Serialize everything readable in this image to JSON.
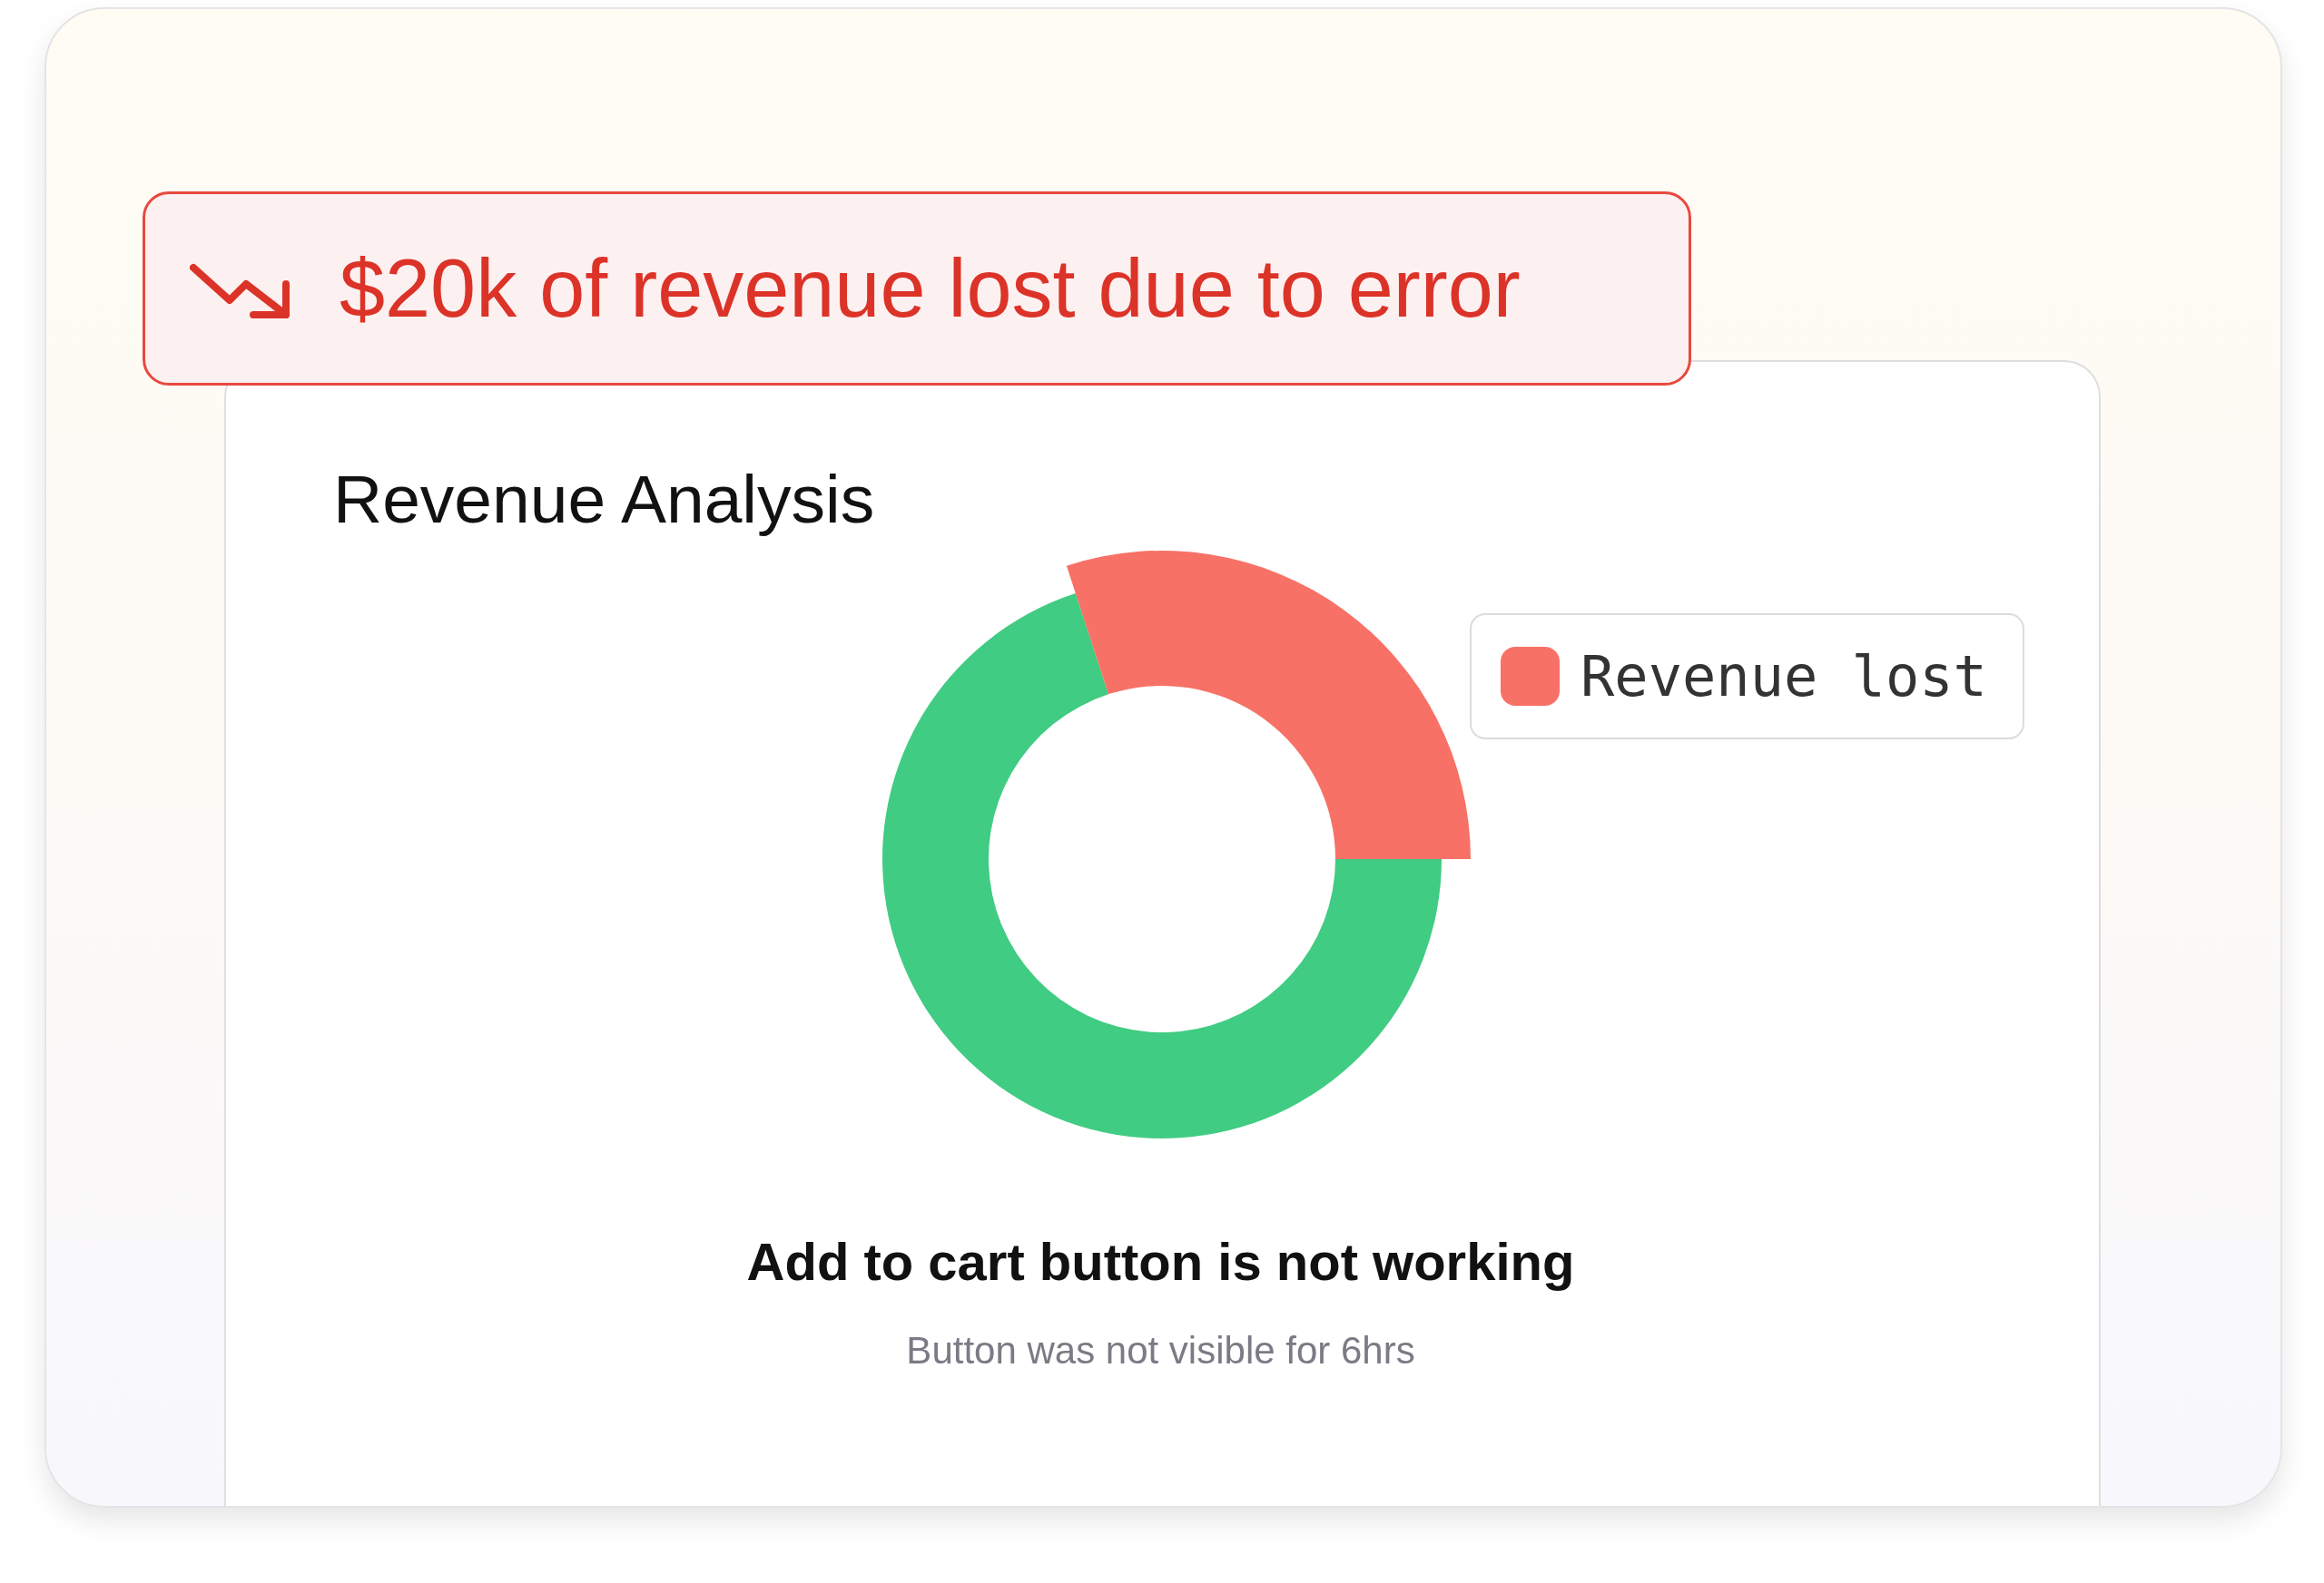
{
  "chart_data": {
    "type": "donut",
    "title": "Revenue Analysis",
    "categories": [
      "Revenue lost",
      null
    ],
    "values": [
      30,
      70
    ],
    "colors": [
      "#f87166",
      "#40cc82"
    ],
    "legend": "right",
    "annotations": [
      "$20k of revenue lost due to error",
      "Add to cart button is not working",
      "Button was not visible for 6hrs"
    ]
  }
}
